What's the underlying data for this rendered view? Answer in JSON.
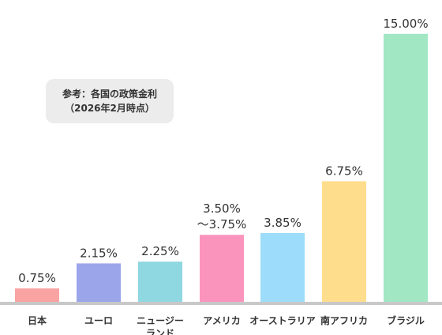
{
  "note": {
    "line1": "参考：各国の政策金利",
    "line2": "（2026年2月時点）"
  },
  "colors": {
    "baseline": "#c8c8c8",
    "label_text": "#333333"
  },
  "chart_data": {
    "type": "bar",
    "categories": [
      [
        "日本"
      ],
      [
        "ユーロ"
      ],
      [
        "ニュージー",
        "ランド"
      ],
      [
        "アメリカ"
      ],
      [
        "オーストラリア"
      ],
      [
        "南アフリカ"
      ],
      [
        "ブラジル"
      ]
    ],
    "values": [
      0.75,
      2.15,
      2.25,
      3.75,
      3.85,
      6.75,
      15.0
    ],
    "value_labels": [
      [
        "0.75%"
      ],
      [
        "2.15%"
      ],
      [
        "2.25%"
      ],
      [
        "3.50%",
        "～3.75%"
      ],
      [
        "3.85%"
      ],
      [
        "6.75%"
      ],
      [
        "15.00%"
      ]
    ],
    "bar_colors": [
      "#f9a3a3",
      "#9ba6ea",
      "#8fd7e1",
      "#fb94bd",
      "#9ddcfa",
      "#fedd8d",
      "#a2e7c4"
    ],
    "ylim": [
      0,
      15.7
    ],
    "title": "",
    "xlabel": "",
    "ylabel": "",
    "grid": false
  }
}
